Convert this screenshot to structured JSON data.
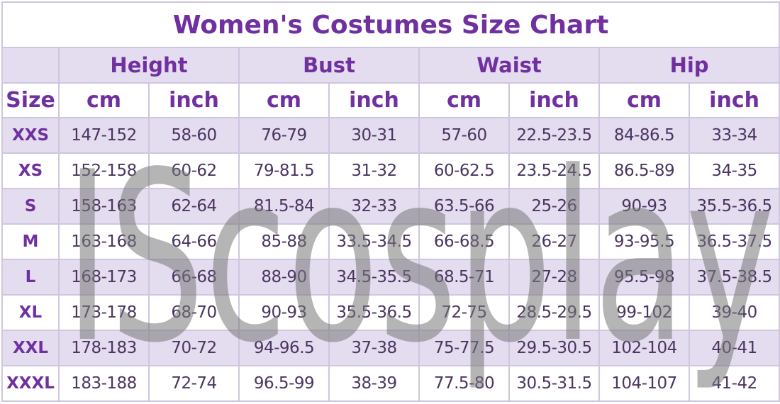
{
  "title": "Women's Costumes Size Chart",
  "size_label": "Size",
  "groups": [
    "Height",
    "Bust",
    "Waist",
    "Hip"
  ],
  "units": [
    "cm",
    "inch",
    "cm",
    "inch",
    "cm",
    "inch",
    "cm",
    "inch"
  ],
  "rows": [
    [
      "XXS",
      "147-152",
      "58-60",
      "76-79",
      "30-31",
      "57-60",
      "22.5-23.5",
      "84-86.5",
      "33-34"
    ],
    [
      "XS",
      "152-158",
      "60-62",
      "79-81.5",
      "31-32",
      "60-62.5",
      "23.5-24.5",
      "86.5-89",
      "34-35"
    ],
    [
      "S",
      "158-163",
      "62-64",
      "81.5-84",
      "32-33",
      "63.5-66",
      "25-26",
      "90-93",
      "35.5-36.5"
    ],
    [
      "M",
      "163-168",
      "64-66",
      "85-88",
      "33.5-34.5",
      "66-68.5",
      "26-27",
      "93-95.5",
      "36.5-37.5"
    ],
    [
      "L",
      "168-173",
      "66-68",
      "88-90",
      "34.5-35.5",
      "68.5-71",
      "27-28",
      "95.5-98",
      "37.5-38.5"
    ],
    [
      "XL",
      "173-178",
      "68-70",
      "90-93",
      "35.5-36.5",
      "72-75",
      "28.5-29.5",
      "99-102",
      "39-40"
    ],
    [
      "XXL",
      "178-183",
      "70-72",
      "94-96.5",
      "37-38",
      "75-77.5",
      "29.5-30.5",
      "102-104",
      "40-41"
    ],
    [
      "XXXL",
      "183-188",
      "72-74",
      "96.5-99",
      "38-39",
      "77.5-80",
      "30.5-31.5",
      "104-107",
      "41-42"
    ]
  ],
  "watermark": "IScosplay"
}
